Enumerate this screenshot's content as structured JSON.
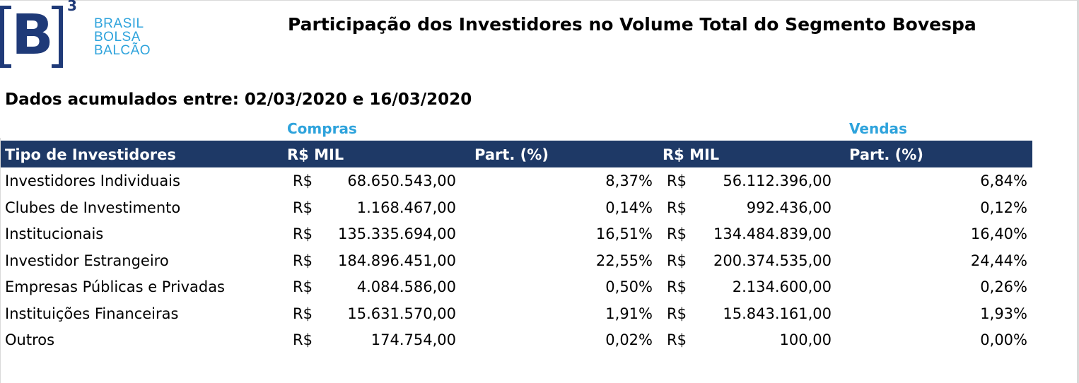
{
  "logo": {
    "mark": "B",
    "superscript": "3",
    "words": [
      "BRASIL",
      "BOLSA",
      "BALCÃO"
    ]
  },
  "title": "Participação dos Investidores no Volume Total do Segmento Bovespa",
  "subtitle": "Dados acumulados entre: 02/03/2020 e 16/03/2020",
  "groups": {
    "compras": "Compras",
    "vendas": "Vendas"
  },
  "headers": {
    "tipo": "Tipo de Investidores",
    "rs_mil_compras": "R$ MIL",
    "part_compras": "Part. (%)",
    "rs_mil_vendas": "R$ MIL",
    "part_vendas": "Part. (%)"
  },
  "rows": [
    {
      "name": "Investidores Individuais",
      "cur1": "R$",
      "compras": "68.650.543,00",
      "part_compras": "8,37%",
      "cur2": "R$",
      "vendas": "56.112.396,00",
      "part_vendas": "6,84%"
    },
    {
      "name": "Clubes de Investimento",
      "cur1": "R$",
      "compras": "1.168.467,00",
      "part_compras": "0,14%",
      "cur2": "R$",
      "vendas": "992.436,00",
      "part_vendas": "0,12%"
    },
    {
      "name": "Institucionais",
      "cur1": "R$",
      "compras": "135.335.694,00",
      "part_compras": "16,51%",
      "cur2": "R$",
      "vendas": "134.484.839,00",
      "part_vendas": "16,40%"
    },
    {
      "name": "Investidor Estrangeiro",
      "cur1": "R$",
      "compras": "184.896.451,00",
      "part_compras": "22,55%",
      "cur2": "R$",
      "vendas": "200.374.535,00",
      "part_vendas": "24,44%"
    },
    {
      "name": "Empresas Públicas e Privadas",
      "cur1": "R$",
      "compras": "4.084.586,00",
      "part_compras": "0,50%",
      "cur2": "R$",
      "vendas": "2.134.600,00",
      "part_vendas": "0,26%"
    },
    {
      "name": "Instituições Financeiras",
      "cur1": "R$",
      "compras": "15.631.570,00",
      "part_compras": "1,91%",
      "cur2": "R$",
      "vendas": "15.843.161,00",
      "part_vendas": "1,93%"
    },
    {
      "name": "Outros",
      "cur1": "R$",
      "compras": "174.754,00",
      "part_compras": "0,02%",
      "cur2": "R$",
      "vendas": "100,00",
      "part_vendas": "0,00%"
    }
  ],
  "colors": {
    "header_bg": "#1e3966",
    "accent": "#2ea3dc",
    "logo_dark": "#1f3a78"
  }
}
